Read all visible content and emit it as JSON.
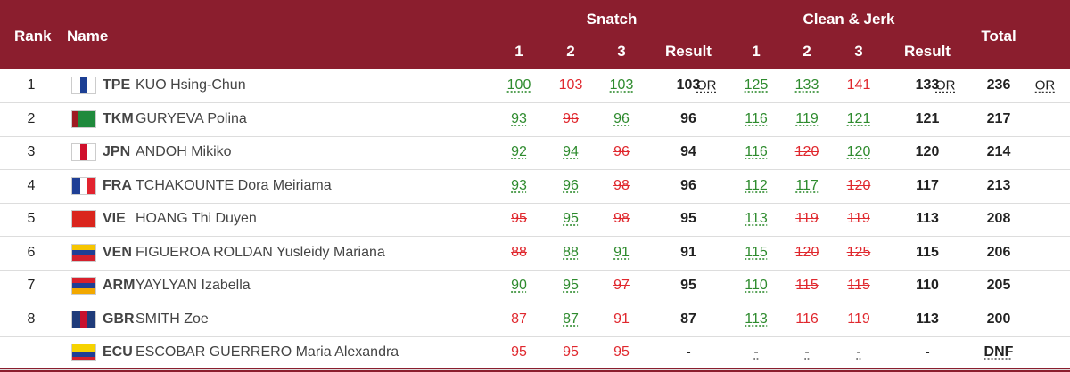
{
  "header": {
    "rank": "Rank",
    "name": "Name",
    "snatch": "Snatch",
    "clean_jerk": "Clean & Jerk",
    "total": "Total",
    "attempts": [
      "1",
      "2",
      "3"
    ],
    "result": "Result"
  },
  "rows": [
    {
      "rank": "1",
      "country": "TPE",
      "name": "KUO Hsing-Chun",
      "flag_colors": [
        "#ffffff",
        "#1c3f94",
        "#ffffff"
      ],
      "flag_dir": "row",
      "snatch": [
        {
          "value": 100,
          "status": "good"
        },
        {
          "value": 103,
          "status": "fail"
        },
        {
          "value": 103,
          "status": "good"
        }
      ],
      "snatch_result": 103,
      "snatch_record": "OR",
      "clean_jerk": [
        {
          "value": 125,
          "status": "good"
        },
        {
          "value": 133,
          "status": "good"
        },
        {
          "value": 141,
          "status": "fail"
        }
      ],
      "cj_result": 133,
      "cj_record": "OR",
      "total": 236,
      "total_record": "OR"
    },
    {
      "rank": "2",
      "country": "TKM",
      "name": "GURYEVA Polina",
      "flag_colors": [
        "#9e1b22",
        "#1f8a3c",
        "#1f8a3c",
        "#1f8a3c"
      ],
      "flag_dir": "row",
      "snatch": [
        {
          "value": 93,
          "status": "good"
        },
        {
          "value": 96,
          "status": "fail"
        },
        {
          "value": 96,
          "status": "good"
        }
      ],
      "snatch_result": 96,
      "clean_jerk": [
        {
          "value": 116,
          "status": "good"
        },
        {
          "value": 119,
          "status": "good"
        },
        {
          "value": 121,
          "status": "good"
        }
      ],
      "cj_result": 121,
      "total": 217
    },
    {
      "rank": "3",
      "country": "JPN",
      "name": "ANDOH Mikiko",
      "flag_colors": [
        "#ffffff",
        "#d0102c",
        "#ffffff"
      ],
      "flag_dir": "row",
      "snatch": [
        {
          "value": 92,
          "status": "good"
        },
        {
          "value": 94,
          "status": "good"
        },
        {
          "value": 96,
          "status": "fail"
        }
      ],
      "snatch_result": 94,
      "clean_jerk": [
        {
          "value": 116,
          "status": "good"
        },
        {
          "value": 120,
          "status": "fail"
        },
        {
          "value": 120,
          "status": "good"
        }
      ],
      "cj_result": 120,
      "total": 214
    },
    {
      "rank": "4",
      "country": "FRA",
      "name": "TCHAKOUNTE Dora Meiriama",
      "flag_colors": [
        "#1f3f95",
        "#ffffff",
        "#e2232f"
      ],
      "flag_dir": "row",
      "snatch": [
        {
          "value": 93,
          "status": "good"
        },
        {
          "value": 96,
          "status": "good"
        },
        {
          "value": 98,
          "status": "fail"
        }
      ],
      "snatch_result": 96,
      "clean_jerk": [
        {
          "value": 112,
          "status": "good"
        },
        {
          "value": 117,
          "status": "good"
        },
        {
          "value": 120,
          "status": "fail"
        }
      ],
      "cj_result": 117,
      "total": 213
    },
    {
      "rank": "5",
      "country": "VIE",
      "name": "HOANG Thi Duyen",
      "flag_colors": [
        "#da251d"
      ],
      "flag_dir": "row",
      "snatch": [
        {
          "value": 95,
          "status": "fail"
        },
        {
          "value": 95,
          "status": "good"
        },
        {
          "value": 98,
          "status": "fail"
        }
      ],
      "snatch_result": 95,
      "clean_jerk": [
        {
          "value": 113,
          "status": "good"
        },
        {
          "value": 119,
          "status": "fail"
        },
        {
          "value": 119,
          "status": "fail"
        }
      ],
      "cj_result": 113,
      "total": 208
    },
    {
      "rank": "6",
      "country": "VEN",
      "name": "FIGUEROA ROLDAN Yusleidy Mariana",
      "flag_colors": [
        "#f6c500",
        "#1f3f95",
        "#d4202c"
      ],
      "flag_dir": "column",
      "snatch": [
        {
          "value": 88,
          "status": "fail"
        },
        {
          "value": 88,
          "status": "good"
        },
        {
          "value": 91,
          "status": "good"
        }
      ],
      "snatch_result": 91,
      "clean_jerk": [
        {
          "value": 115,
          "status": "good"
        },
        {
          "value": 120,
          "status": "fail"
        },
        {
          "value": 125,
          "status": "fail"
        }
      ],
      "cj_result": 115,
      "total": 206
    },
    {
      "rank": "7",
      "country": "ARM",
      "name": "YAYLYAN Izabella",
      "flag_colors": [
        "#d9202c",
        "#1f3f95",
        "#f2a800"
      ],
      "flag_dir": "column",
      "snatch": [
        {
          "value": 90,
          "status": "good"
        },
        {
          "value": 95,
          "status": "good"
        },
        {
          "value": 97,
          "status": "fail"
        }
      ],
      "snatch_result": 95,
      "clean_jerk": [
        {
          "value": 110,
          "status": "good"
        },
        {
          "value": 115,
          "status": "fail"
        },
        {
          "value": 115,
          "status": "fail"
        }
      ],
      "cj_result": 110,
      "total": 205
    },
    {
      "rank": "8",
      "country": "GBR",
      "name": "SMITH Zoe",
      "flag_colors": [
        "#1f3b7a",
        "#c8102e",
        "#1f3b7a"
      ],
      "flag_dir": "row",
      "snatch": [
        {
          "value": 87,
          "status": "fail"
        },
        {
          "value": 87,
          "status": "good"
        },
        {
          "value": 91,
          "status": "fail"
        }
      ],
      "snatch_result": 87,
      "clean_jerk": [
        {
          "value": 113,
          "status": "good"
        },
        {
          "value": 116,
          "status": "fail"
        },
        {
          "value": 119,
          "status": "fail"
        }
      ],
      "cj_result": 113,
      "total": 200
    },
    {
      "country": "ECU",
      "name": "ESCOBAR GUERRERO Maria Alexandra",
      "flag_colors": [
        "#f6d300",
        "#f6d300",
        "#1f3f95",
        "#d4202c"
      ],
      "flag_dir": "column",
      "snatch": [
        {
          "value": 95,
          "status": "fail"
        },
        {
          "value": 95,
          "status": "fail"
        },
        {
          "value": 95,
          "status": "fail"
        }
      ],
      "snatch_result": "-",
      "clean_jerk": [
        {
          "value": "-",
          "status": "none"
        },
        {
          "value": "-",
          "status": "none"
        },
        {
          "value": "-",
          "status": "none"
        }
      ],
      "cj_result": "-",
      "total": "DNF",
      "total_status": "none"
    }
  ]
}
